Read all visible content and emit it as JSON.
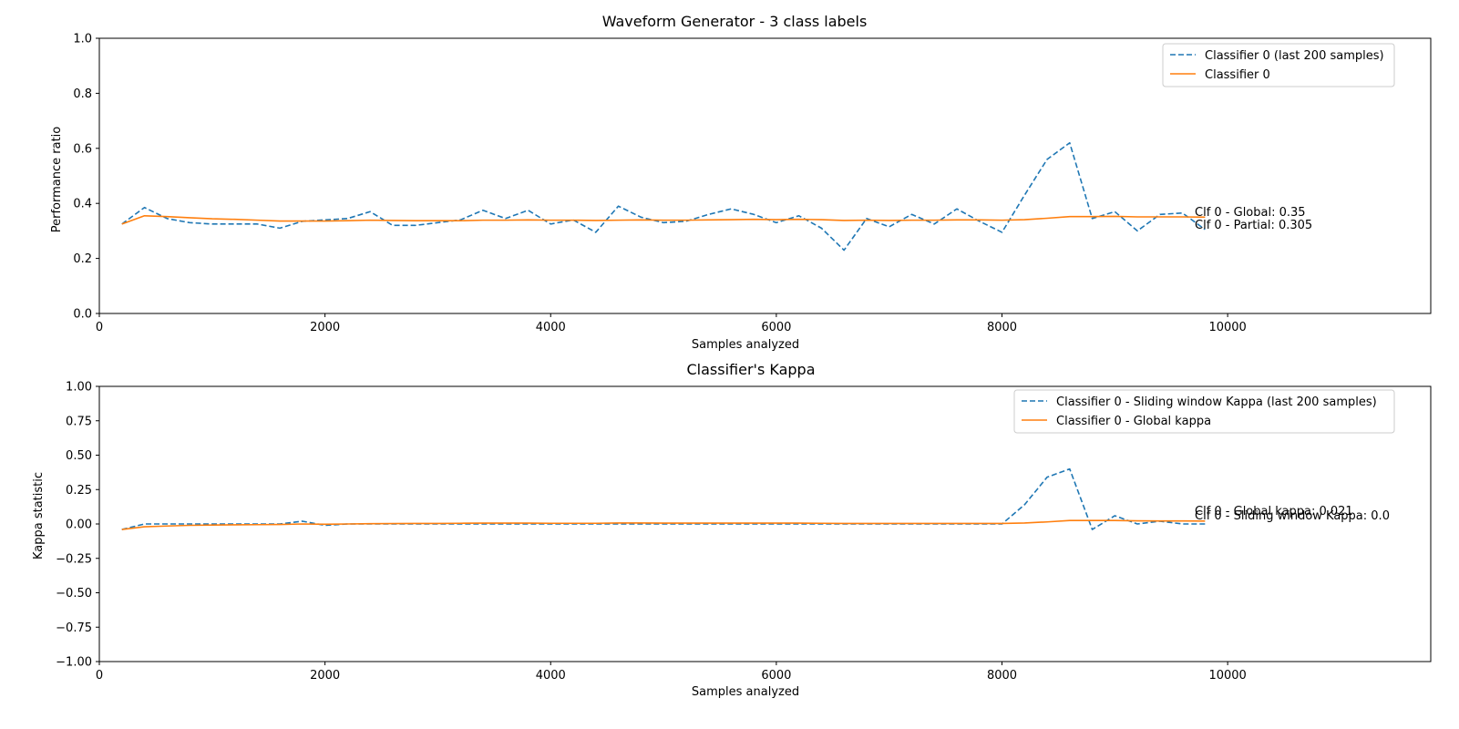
{
  "chart_data": [
    {
      "type": "line",
      "title": "Waveform Generator - 3 class labels",
      "xlabel": "Samples analyzed",
      "ylabel": "Performance ratio",
      "xlim": [
        0,
        11800
      ],
      "ylim": [
        0,
        1.0
      ],
      "xticks": [
        "0",
        "2000",
        "4000",
        "6000",
        "8000",
        "10000"
      ],
      "yticks": [
        "0.0",
        "0.2",
        "0.4",
        "0.6",
        "0.8",
        "1.0"
      ],
      "legend_position": "top-right",
      "x": [
        200,
        400,
        600,
        800,
        1000,
        1200,
        1400,
        1600,
        1800,
        2000,
        2200,
        2400,
        2600,
        2800,
        3000,
        3200,
        3400,
        3600,
        3800,
        4000,
        4200,
        4400,
        4600,
        4800,
        5000,
        5200,
        5400,
        5600,
        5800,
        6000,
        6200,
        6400,
        6600,
        6800,
        7000,
        7200,
        7400,
        7600,
        7800,
        8000,
        8200,
        8400,
        8600,
        8800,
        9000,
        9200,
        9400,
        9600,
        9800
      ],
      "series": [
        {
          "name": "Classifier 0 (last 200 samples)",
          "color": "#1f77b4",
          "style": "dashed",
          "values": [
            0.325,
            0.385,
            0.345,
            0.33,
            0.325,
            0.325,
            0.325,
            0.31,
            0.335,
            0.34,
            0.345,
            0.37,
            0.32,
            0.32,
            0.33,
            0.34,
            0.375,
            0.345,
            0.375,
            0.325,
            0.34,
            0.295,
            0.39,
            0.35,
            0.33,
            0.335,
            0.36,
            0.38,
            0.36,
            0.33,
            0.355,
            0.31,
            0.23,
            0.345,
            0.315,
            0.36,
            0.325,
            0.38,
            0.335,
            0.295,
            0.43,
            0.56,
            0.62,
            0.345,
            0.37,
            0.3,
            0.36,
            0.365,
            0.305
          ]
        },
        {
          "name": "Classifier 0",
          "color": "#ff7f0e",
          "style": "solid",
          "values": [
            0.325,
            0.355,
            0.352,
            0.348,
            0.344,
            0.342,
            0.339,
            0.336,
            0.336,
            0.336,
            0.337,
            0.339,
            0.338,
            0.337,
            0.337,
            0.337,
            0.339,
            0.339,
            0.34,
            0.339,
            0.339,
            0.338,
            0.339,
            0.34,
            0.339,
            0.339,
            0.34,
            0.341,
            0.342,
            0.341,
            0.342,
            0.341,
            0.338,
            0.339,
            0.338,
            0.339,
            0.339,
            0.34,
            0.34,
            0.339,
            0.341,
            0.346,
            0.352,
            0.352,
            0.353,
            0.351,
            0.351,
            0.351,
            0.35
          ]
        }
      ],
      "annotations": [
        "Clf 0 - Global: 0.35",
        "Clf 0 - Partial: 0.305"
      ]
    },
    {
      "type": "line",
      "title": "Classifier's Kappa",
      "xlabel": "Samples analyzed",
      "ylabel": "Kappa statistic",
      "xlim": [
        0,
        11800
      ],
      "ylim": [
        -1.0,
        1.0
      ],
      "xticks": [
        "0",
        "2000",
        "4000",
        "6000",
        "8000",
        "10000"
      ],
      "yticks": [
        "−1.00",
        "−0.75",
        "−0.50",
        "−0.25",
        "0.00",
        "0.25",
        "0.50",
        "0.75",
        "1.00"
      ],
      "legend_position": "top-right",
      "x": [
        200,
        400,
        600,
        800,
        1000,
        1200,
        1400,
        1600,
        1800,
        2000,
        2200,
        2400,
        2600,
        2800,
        3000,
        3200,
        3400,
        3600,
        3800,
        4000,
        4200,
        4400,
        4600,
        4800,
        5000,
        5200,
        5400,
        5600,
        5800,
        6000,
        6200,
        6400,
        6600,
        6800,
        7000,
        7200,
        7400,
        7600,
        7800,
        8000,
        8200,
        8400,
        8600,
        8800,
        9000,
        9200,
        9400,
        9600,
        9800
      ],
      "series": [
        {
          "name": "Classifier 0 - Sliding window Kappa (last 200 samples)",
          "color": "#1f77b4",
          "style": "dashed",
          "values": [
            -0.04,
            0.0,
            0.0,
            0.0,
            0.0,
            0.0,
            0.0,
            0.0,
            0.02,
            -0.01,
            0.0,
            0.0,
            0.0,
            0.0,
            0.0,
            0.0,
            0.0,
            0.0,
            0.0,
            0.0,
            0.0,
            0.0,
            0.0,
            0.0,
            0.0,
            0.0,
            0.0,
            0.0,
            0.0,
            0.0,
            0.0,
            0.0,
            0.0,
            0.0,
            0.0,
            0.0,
            0.0,
            0.0,
            0.0,
            0.0,
            0.14,
            0.34,
            0.4,
            -0.04,
            0.06,
            0.0,
            0.02,
            0.0,
            0.0
          ]
        },
        {
          "name": "Classifier 0 - Global kappa",
          "color": "#ff7f0e",
          "style": "solid",
          "values": [
            -0.04,
            -0.02,
            -0.015,
            -0.01,
            -0.008,
            -0.006,
            -0.005,
            -0.004,
            0.0,
            -0.002,
            0.0,
            0.002,
            0.003,
            0.004,
            0.004,
            0.005,
            0.006,
            0.006,
            0.006,
            0.005,
            0.005,
            0.005,
            0.007,
            0.007,
            0.006,
            0.006,
            0.006,
            0.006,
            0.006,
            0.006,
            0.006,
            0.005,
            0.004,
            0.004,
            0.004,
            0.004,
            0.004,
            0.004,
            0.004,
            0.004,
            0.007,
            0.015,
            0.025,
            0.025,
            0.025,
            0.023,
            0.022,
            0.022,
            0.021
          ]
        }
      ],
      "annotations": [
        "Clf 0 - Global kappa: 0.021",
        "Clf 0 - Sliding window Kappa: 0.0"
      ]
    }
  ]
}
